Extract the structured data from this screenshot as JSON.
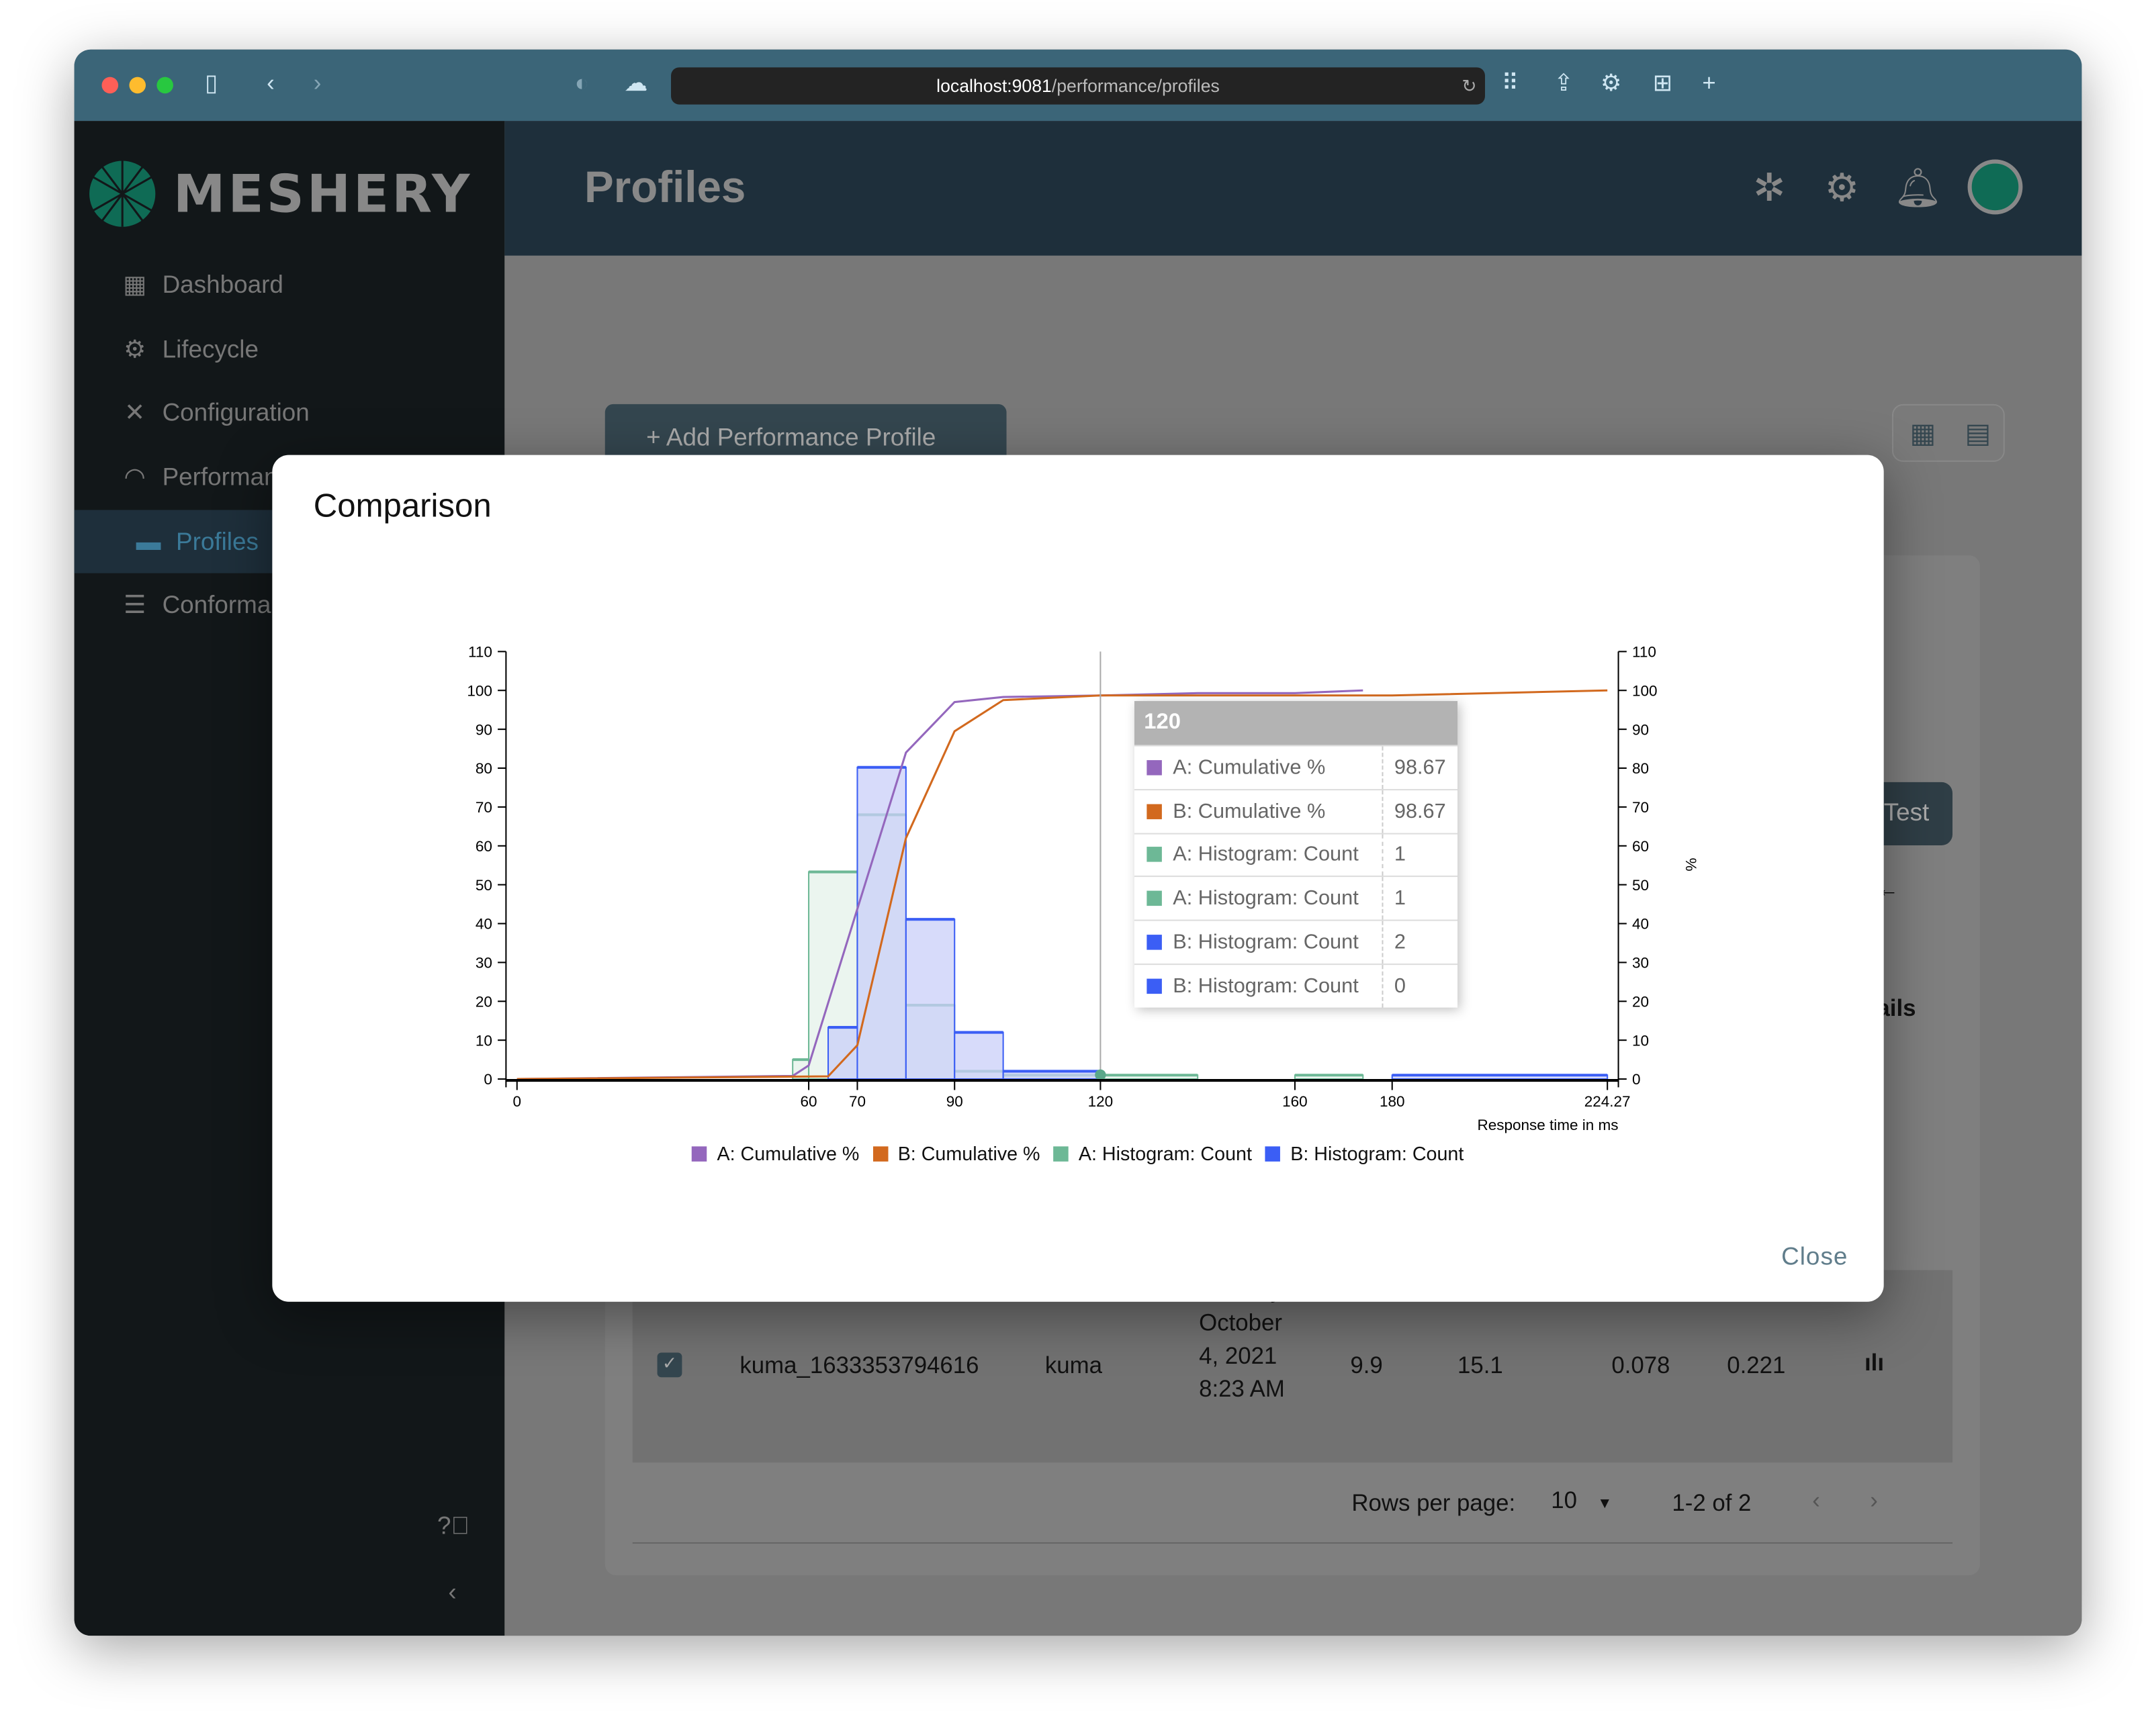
{
  "browser": {
    "url_host": "localhost:9081",
    "url_path": "/performance/profiles"
  },
  "app": {
    "logo": "MESHERY",
    "page_title": "Profiles"
  },
  "sidebar": {
    "items": [
      {
        "label": "Dashboard",
        "icon": "dashboard-icon"
      },
      {
        "label": "Lifecycle",
        "icon": "gears-icon"
      },
      {
        "label": "Configuration",
        "icon": "tools-icon"
      },
      {
        "label": "Performance",
        "icon": "gauge-icon"
      },
      {
        "label": "Profiles",
        "icon": "card-icon",
        "active": true
      },
      {
        "label": "Conformance",
        "icon": "checklist-icon"
      }
    ]
  },
  "main": {
    "add_button": "+ Add Performance Profile",
    "test_button": "Test",
    "details_label": "ails",
    "row": {
      "name": "kuma_1633353794616",
      "mesh": "kuma",
      "date_lines": [
        "Monday,",
        "October",
        "4, 2021",
        "8:23 AM"
      ],
      "v1": "9.9",
      "v2": "15.1",
      "v3": "0.078",
      "v4": "0.221"
    },
    "pagination": {
      "rows_label": "Rows per page:",
      "rows_value": "10",
      "range": "1-2 of 2"
    }
  },
  "modal": {
    "title": "Comparison",
    "close": "Close",
    "tooltip": {
      "header": "120",
      "rows": [
        {
          "name": "A: Cumulative %",
          "value": "98.67",
          "color": "#9467bd"
        },
        {
          "name": "B: Cumulative %",
          "value": "98.67",
          "color": "#d2691e"
        },
        {
          "name": "A: Histogram: Count",
          "value": "1",
          "color": "#6db896"
        },
        {
          "name": "A: Histogram: Count",
          "value": "1",
          "color": "#6db896"
        },
        {
          "name": "B: Histogram: Count",
          "value": "2",
          "color": "#3b5ef5"
        },
        {
          "name": "B: Histogram: Count",
          "value": "0",
          "color": "#3b5ef5"
        }
      ]
    }
  },
  "chart_data": {
    "type": "bar+line",
    "xlabel": "Response time in ms",
    "y2label": "%",
    "xlim": [
      0,
      224.27
    ],
    "ylim": [
      0,
      110
    ],
    "y2lim": [
      0,
      110
    ],
    "xticks": [
      0,
      60,
      70,
      90,
      120,
      160,
      180,
      224.27
    ],
    "yticks": [
      0,
      10,
      20,
      30,
      40,
      50,
      60,
      70,
      80,
      90,
      100,
      110
    ],
    "legend_position": "bottom",
    "series": [
      {
        "name": "A: Cumulative %",
        "kind": "line",
        "color": "#9467bd",
        "points": [
          [
            0,
            0
          ],
          [
            56.7,
            0.8
          ],
          [
            60,
            3.5
          ],
          [
            80,
            84
          ],
          [
            90,
            97
          ],
          [
            100,
            98.3
          ],
          [
            120,
            98.7
          ],
          [
            140,
            99.3
          ],
          [
            160,
            99.3
          ],
          [
            174,
            100
          ]
        ]
      },
      {
        "name": "B: Cumulative %",
        "kind": "line",
        "color": "#d2691e",
        "points": [
          [
            0,
            0
          ],
          [
            64,
            0.7
          ],
          [
            70,
            8.7
          ],
          [
            80,
            62
          ],
          [
            90,
            89.5
          ],
          [
            100,
            97.5
          ],
          [
            120,
            98.7
          ],
          [
            180,
            98.7
          ],
          [
            224.27,
            100
          ]
        ]
      },
      {
        "name": "A: Histogram: Count",
        "kind": "bar",
        "color": "#6db896",
        "fill": "#e4f1ea",
        "bins": [
          [
            56.7,
            60,
            5
          ],
          [
            60,
            70,
            53.3
          ],
          [
            70,
            80,
            68
          ],
          [
            80,
            90,
            19
          ],
          [
            90,
            100,
            2
          ],
          [
            100,
            120,
            1
          ],
          [
            120,
            140,
            1
          ],
          [
            160,
            174,
            1
          ]
        ]
      },
      {
        "name": "B: Histogram: Count",
        "kind": "bar",
        "color": "#3b5ef5",
        "fill": "#c9cff8",
        "bins": [
          [
            64,
            70,
            13.3
          ],
          [
            70,
            80,
            80.2
          ],
          [
            80,
            90,
            41.1
          ],
          [
            90,
            100,
            12
          ],
          [
            100,
            120,
            2
          ],
          [
            180,
            224.27,
            1
          ]
        ]
      }
    ],
    "hover_x": 120
  }
}
